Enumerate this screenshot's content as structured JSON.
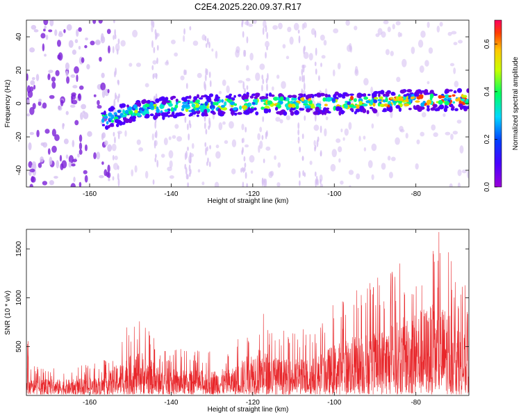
{
  "title": "C2E4.2025.220.09.37.R17",
  "colors": {
    "line": "#e8262a",
    "spec_base": "#7a1fd8",
    "spec_light": "#d7c2f2"
  },
  "chart_data": [
    {
      "type": "heatmap",
      "xlabel": "Height of straight line (km)",
      "ylabel": "Frequency (Hz)",
      "xlim": [
        -175.5,
        -67
      ],
      "ylim": [
        -50,
        50
      ],
      "xticks": [
        -160,
        -140,
        -120,
        -100,
        -80
      ],
      "yticks": [
        -40,
        -20,
        0,
        20,
        40
      ],
      "colorbar": {
        "label": "Normalized spectral amplitude",
        "range": [
          0.0,
          0.7
        ],
        "ticks": [
          0.0,
          0.2,
          0.4,
          0.6
        ],
        "tick_labels": [
          "0.0",
          "0.2",
          "0.4",
          "0.6"
        ],
        "colormap": "rainbow (purple to red)"
      },
      "features": {
        "signal_band_center_hz": [
          {
            "height_km": -157,
            "freq_hz": -10
          },
          {
            "height_km": -150,
            "freq_hz": -5
          },
          {
            "height_km": -140,
            "freq_hz": -2
          },
          {
            "height_km": -120,
            "freq_hz": 0
          },
          {
            "height_km": -100,
            "freq_hz": 0
          },
          {
            "height_km": -80,
            "freq_hz": 2
          },
          {
            "height_km": -68,
            "freq_hz": 2
          }
        ],
        "band_start_km": -157,
        "peak_amplitude_region_km": [
          -80,
          -68
        ],
        "broadband_noise_km": [
          -175.5,
          -155
        ]
      }
    },
    {
      "type": "line",
      "xlabel": "Height of straight line (km)",
      "ylabel": "SNR (10 * v/v)",
      "xlim": [
        -175.5,
        -67
      ],
      "ylim": [
        0,
        1700
      ],
      "xticks": [
        -160,
        -140,
        -120,
        -100,
        -80
      ],
      "yticks": [
        500,
        1000,
        1500
      ],
      "series": [
        {
          "color": "#e8262a",
          "envelope": [
            {
              "x": -175,
              "y": 290
            },
            {
              "x": -165,
              "y": 280
            },
            {
              "x": -157,
              "y": 330
            },
            {
              "x": -151,
              "y": 700
            },
            {
              "x": -147,
              "y": 820
            },
            {
              "x": -143,
              "y": 500
            },
            {
              "x": -135,
              "y": 450
            },
            {
              "x": -125,
              "y": 480
            },
            {
              "x": -119,
              "y": 900
            },
            {
              "x": -113,
              "y": 650
            },
            {
              "x": -105,
              "y": 700
            },
            {
              "x": -100,
              "y": 950
            },
            {
              "x": -95,
              "y": 1100
            },
            {
              "x": -90,
              "y": 1200
            },
            {
              "x": -85,
              "y": 1350
            },
            {
              "x": -82,
              "y": 1500
            },
            {
              "x": -77,
              "y": 1680
            },
            {
              "x": -72,
              "y": 1650
            },
            {
              "x": -67,
              "y": 1000
            }
          ]
        }
      ]
    }
  ]
}
